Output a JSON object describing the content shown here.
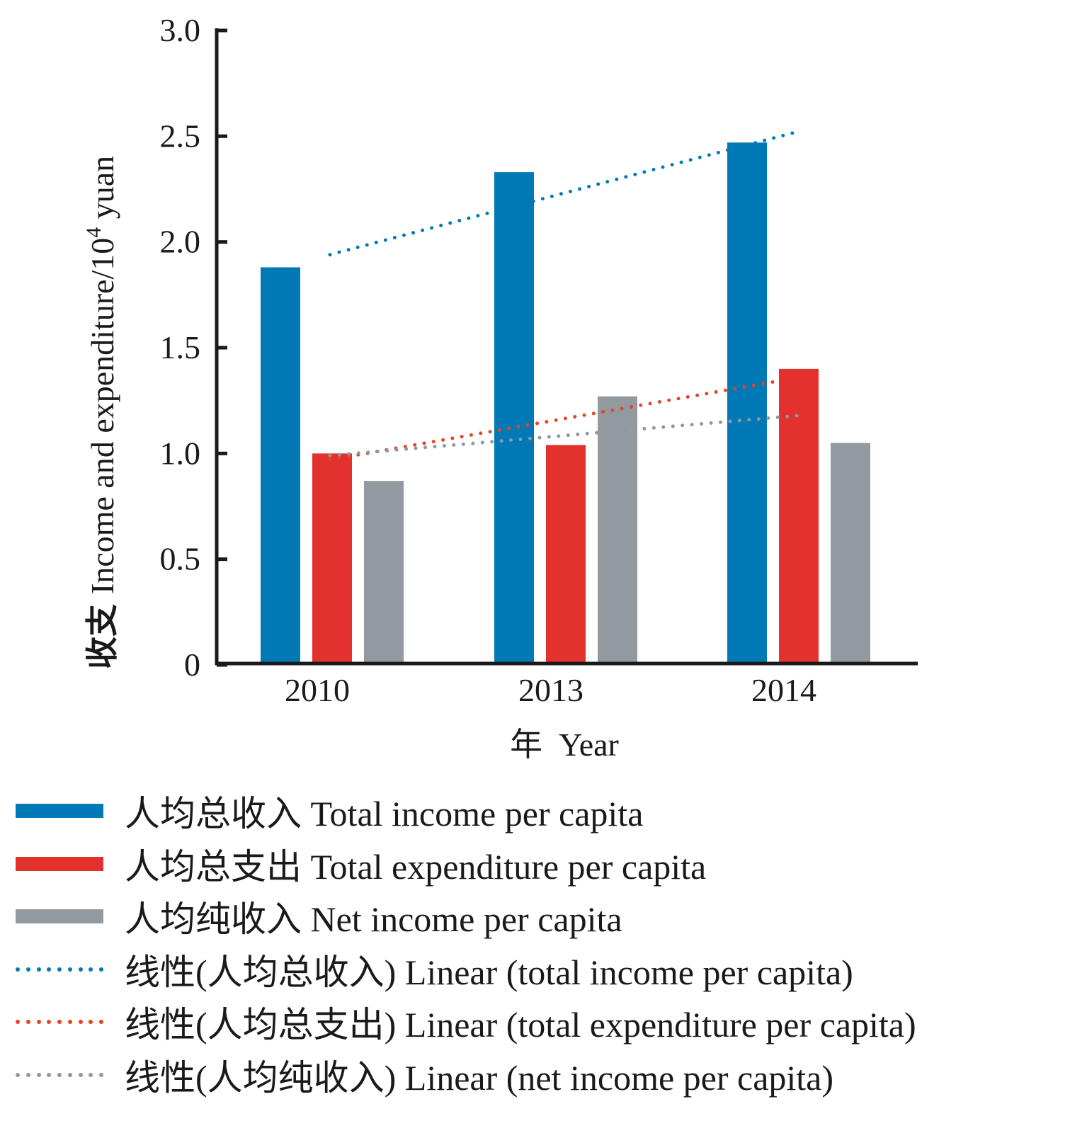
{
  "chart_data": {
    "type": "bar",
    "title": "",
    "xlabel": "年  Year",
    "ylabel_cn": "收支",
    "ylabel_en": "Income and expenditure/10",
    "ylabel_sup": "4",
    "ylabel_unit": " yuan",
    "ylim": [
      0,
      3.0
    ],
    "yticks": [
      0,
      0.5,
      1.0,
      1.5,
      2.0,
      2.5,
      3.0
    ],
    "ytick_labels": [
      "0",
      "0.5",
      "1.0",
      "1.5",
      "2.0",
      "2.5",
      "3.0"
    ],
    "categories": [
      "2010",
      "2013",
      "2014"
    ],
    "grid": false,
    "legend_position": "bottom",
    "series": [
      {
        "name": "人均总收入 Total income per capita",
        "color": "#0079b6",
        "values": [
          1.88,
          2.33,
          2.47
        ]
      },
      {
        "name": "人均总支出 Total expenditure per capita",
        "color": "#e3322d",
        "values": [
          1.0,
          1.04,
          1.4
        ]
      },
      {
        "name": "人均纯收入 Net income per capita",
        "color": "#92999f",
        "values": [
          0.87,
          1.27,
          1.05
        ]
      }
    ],
    "trendlines": [
      {
        "name": "线性(人均总收入) Linear (total income per capita)",
        "color": "#0079b6",
        "start": 1.94,
        "end": 2.52
      },
      {
        "name": "线性(人均总支出) Linear (total expenditure per capita)",
        "color": "#e64423",
        "start": 0.97,
        "end": 1.34
      },
      {
        "name": "线性(人均纯收入) Linear (net income per capita)",
        "color": "#8c98a3",
        "start": 0.99,
        "end": 1.18
      }
    ]
  },
  "legend": [
    {
      "kind": "bar",
      "color": "#0079b6",
      "label": "人均总收入 Total income per capita"
    },
    {
      "kind": "bar",
      "color": "#e3322d",
      "label": "人均总支出 Total expenditure per capita"
    },
    {
      "kind": "bar",
      "color": "#92999f",
      "label": "人均纯收入 Net income per capita"
    },
    {
      "kind": "dots",
      "color": "#0079b6",
      "label": "线性(人均总收入) Linear (total income per capita)"
    },
    {
      "kind": "dots",
      "color": "#e64423",
      "label": "线性(人均总支出) Linear (total expenditure per capita)"
    },
    {
      "kind": "dots",
      "color": "#8c98a3",
      "label": "线性(人均纯收入) Linear (net income per capita)"
    }
  ]
}
